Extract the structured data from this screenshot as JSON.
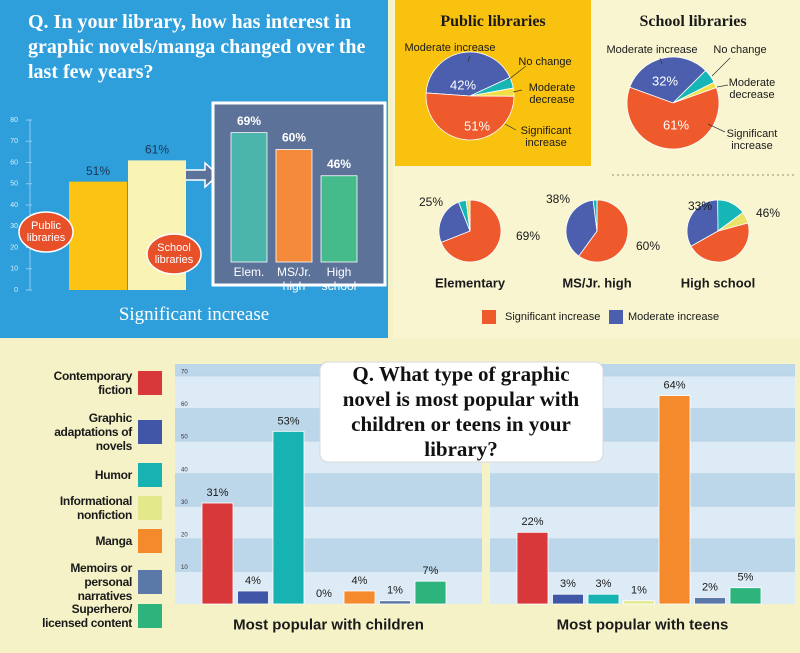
{
  "chart_data": [
    {
      "type": "bar-inset",
      "title": "Q. In your library, how has interest in graphic novels/manga changed over the last few years?",
      "xlabel": "Significant increase",
      "categories": [
        "Public libraries",
        "School libraries"
      ],
      "values": [
        51,
        61
      ],
      "value_labels": [
        "51%",
        "61%"
      ],
      "colors": [
        "#fbc312",
        "#faf4b4"
      ],
      "ylim": [
        0,
        80
      ],
      "yticks": [
        0,
        10,
        20,
        30,
        40,
        50,
        60,
        70,
        80
      ],
      "inset": {
        "categories": [
          "Elem.",
          "MS/Jr. high",
          "High school"
        ],
        "values": [
          69,
          60,
          46
        ],
        "value_labels": [
          "69%",
          "60%",
          "46%"
        ],
        "colors": [
          "#4bb5ab",
          "#f58a3b",
          "#45ba8a"
        ],
        "ylim": [
          0,
          80
        ]
      }
    },
    {
      "type": "pie",
      "title": "Public libraries",
      "categories": [
        "Moderate increase",
        "No change",
        "Moderate decrease",
        "Significant increase"
      ],
      "values": [
        42,
        4,
        3,
        51
      ],
      "value_labels": [
        "42%",
        null,
        null,
        "51%"
      ],
      "colors": [
        "#4b5fae",
        "#17b6b6",
        "#f2df48",
        "#ee5a2c"
      ]
    },
    {
      "type": "pie",
      "title": "School libraries",
      "categories": [
        "Moderate increase",
        "No change",
        "Moderate decrease",
        "Significant increase"
      ],
      "values": [
        32,
        5,
        2,
        61
      ],
      "value_labels": [
        "32%",
        null,
        null,
        "61%"
      ],
      "colors": [
        "#4b5fae",
        "#17b6b6",
        "#f2df48",
        "#ee5a2c"
      ]
    },
    {
      "type": "pie-group",
      "categories": [
        "Significant increase",
        "Moderate increase",
        null,
        null
      ],
      "colors": [
        "#ee5a2c",
        "#4b5fae",
        "#17b6b6",
        "#e9e36a"
      ],
      "pies": [
        {
          "name": "Elementary",
          "values": [
            69,
            25,
            4,
            2
          ],
          "value_labels": [
            "69%",
            "25%",
            null,
            null
          ]
        },
        {
          "name": "MS/Jr. high",
          "values": [
            60,
            38,
            2,
            0
          ],
          "value_labels": [
            "60%",
            "38%",
            null,
            null
          ]
        },
        {
          "name": "High school",
          "values": [
            46,
            33,
            15,
            6
          ],
          "value_labels": [
            "46%",
            "33%",
            null,
            null
          ]
        }
      ]
    },
    {
      "type": "bar",
      "title": "Q. What type of graphic novel is most popular with children or teens in your library?",
      "categories": [
        "Most popular with children",
        "Most popular with teens"
      ],
      "series": [
        {
          "name": "Contemporary fiction",
          "color": "#d9383a",
          "values": [
            31,
            22
          ],
          "value_labels": [
            "31%",
            "22%"
          ]
        },
        {
          "name": "Graphic adaptations of novels",
          "color": "#3f57a6",
          "values": [
            4,
            3
          ],
          "value_labels": [
            "4%",
            "3%"
          ]
        },
        {
          "name": "Humor",
          "color": "#17b3b3",
          "values": [
            53,
            3
          ],
          "value_labels": [
            "53%",
            "3%"
          ]
        },
        {
          "name": "Informational nonfiction",
          "color": "#e3e98a",
          "values": [
            0,
            1
          ],
          "value_labels": [
            "0%",
            "1%"
          ]
        },
        {
          "name": "Manga",
          "color": "#f58a2c",
          "values": [
            4,
            64
          ],
          "value_labels": [
            "4%",
            "64%"
          ]
        },
        {
          "name": "Memoirs or personal narratives",
          "color": "#5a78a8",
          "values": [
            1,
            2
          ],
          "value_labels": [
            "1%",
            "2%"
          ]
        },
        {
          "name": "Superhero/ licensed content",
          "color": "#2db37c",
          "values": [
            7,
            5
          ],
          "value_labels": [
            "7%",
            "5%"
          ]
        }
      ],
      "ylim": [
        0,
        70
      ],
      "yticks": [
        10,
        20,
        30,
        40,
        50,
        60,
        70
      ],
      "grid": true
    }
  ]
}
